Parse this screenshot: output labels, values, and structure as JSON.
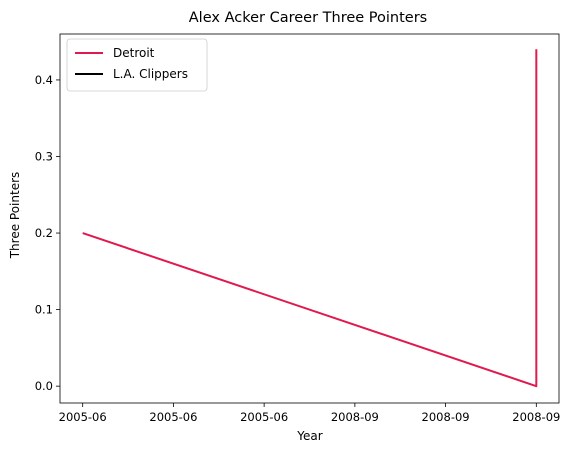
{
  "chart_data": {
    "type": "line",
    "title": "Alex Acker Career Three Pointers",
    "xlabel": "Year",
    "ylabel": "Three Pointers",
    "x_tick_labels": [
      "2005-06",
      "2005-06",
      "2005-06",
      "2008-09",
      "2008-09",
      "2008-09"
    ],
    "y_ticks": [
      0.0,
      0.1,
      0.2,
      0.3,
      0.4
    ],
    "y_tick_labels": [
      "0.0",
      "0.1",
      "0.2",
      "0.3",
      "0.4"
    ],
    "xlim": [
      -0.25,
      5.25
    ],
    "ylim": [
      -0.022,
      0.46
    ],
    "grid": false,
    "legend_position": "upper-left",
    "series": [
      {
        "name": "Detroit",
        "color": "#e0194f",
        "points": [
          {
            "x": 0,
            "y": 0.2
          },
          {
            "x": 5,
            "y": 0.0
          },
          {
            "x": 5,
            "y": 0.44
          }
        ]
      },
      {
        "name": "L.A. Clippers",
        "color": "#000000",
        "points": []
      }
    ]
  }
}
